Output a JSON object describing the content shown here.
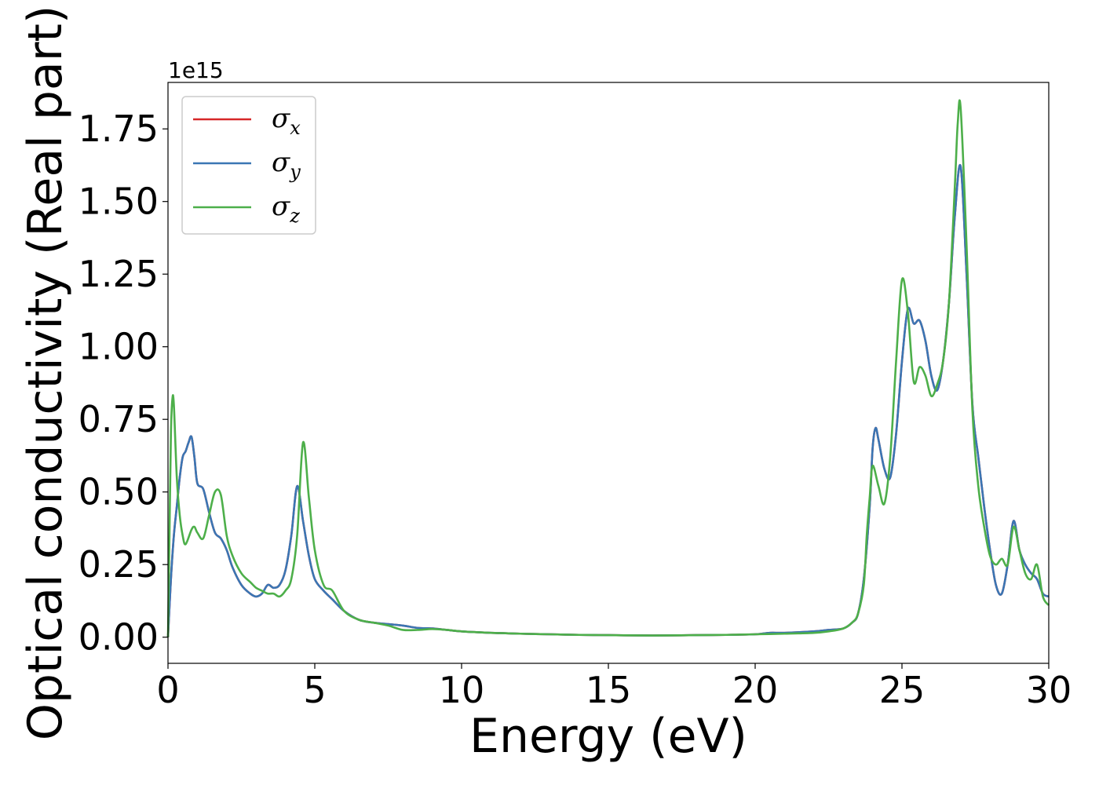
{
  "chart_data": {
    "type": "line",
    "title": "",
    "xlabel": "Energy (eV)",
    "ylabel": "Optical conductivity (Real part)",
    "y_offset_label": "1e15",
    "xlim": [
      0,
      30
    ],
    "ylim": [
      -0.09,
      1.91
    ],
    "x_ticks": [
      0,
      5,
      10,
      15,
      20,
      25,
      30
    ],
    "x_tick_labels": [
      "0",
      "5",
      "10",
      "15",
      "20",
      "25",
      "30"
    ],
    "y_ticks": [
      0.0,
      0.25,
      0.5,
      0.75,
      1.0,
      1.25,
      1.5,
      1.75
    ],
    "y_tick_labels": [
      "0.00",
      "0.25",
      "0.50",
      "0.75",
      "1.00",
      "1.25",
      "1.50",
      "1.75"
    ],
    "grid": false,
    "legend_position": "top-left",
    "series": [
      {
        "name": "σx",
        "symbol": "σ",
        "subscript": "x",
        "color": "#d62728",
        "x": [
          0,
          0.1,
          0.2,
          0.3,
          0.4,
          0.5,
          0.6,
          0.7,
          0.8,
          0.9,
          1.0,
          1.2,
          1.4,
          1.6,
          1.8,
          2.0,
          2.2,
          2.5,
          2.8,
          3.0,
          3.2,
          3.4,
          3.6,
          3.8,
          4.0,
          4.2,
          4.4,
          4.6,
          4.8,
          5.0,
          5.3,
          5.6,
          6.0,
          6.5,
          7.0,
          7.5,
          8.0,
          8.5,
          9.0,
          9.5,
          10,
          11,
          12,
          13,
          14,
          15,
          16,
          17,
          18,
          19,
          20,
          20.5,
          21,
          22,
          22.5,
          23,
          23.3,
          23.5,
          23.7,
          23.9,
          24.0,
          24.1,
          24.2,
          24.4,
          24.6,
          24.8,
          25.0,
          25.2,
          25.4,
          25.6,
          25.8,
          26.0,
          26.2,
          26.4,
          26.6,
          26.8,
          27.0,
          27.2,
          27.4,
          27.6,
          27.8,
          28.0,
          28.2,
          28.4,
          28.6,
          28.8,
          29.0,
          29.2,
          29.4,
          29.6,
          29.8,
          30
        ],
        "y": [
          0.0,
          0.2,
          0.35,
          0.45,
          0.55,
          0.62,
          0.64,
          0.67,
          0.69,
          0.62,
          0.53,
          0.51,
          0.43,
          0.36,
          0.34,
          0.3,
          0.24,
          0.18,
          0.15,
          0.14,
          0.15,
          0.18,
          0.17,
          0.18,
          0.23,
          0.35,
          0.52,
          0.4,
          0.28,
          0.2,
          0.16,
          0.13,
          0.09,
          0.06,
          0.05,
          0.045,
          0.04,
          0.032,
          0.03,
          0.025,
          0.02,
          0.015,
          0.012,
          0.01,
          0.008,
          0.007,
          0.006,
          0.006,
          0.007,
          0.008,
          0.01,
          0.015,
          0.015,
          0.02,
          0.025,
          0.03,
          0.05,
          0.08,
          0.2,
          0.45,
          0.65,
          0.72,
          0.68,
          0.58,
          0.55,
          0.7,
          0.95,
          1.13,
          1.08,
          1.09,
          1.02,
          0.9,
          0.85,
          0.95,
          1.15,
          1.45,
          1.62,
          1.25,
          0.8,
          0.62,
          0.45,
          0.3,
          0.18,
          0.15,
          0.25,
          0.4,
          0.3,
          0.25,
          0.22,
          0.2,
          0.15,
          0.14
        ]
      },
      {
        "name": "σy",
        "symbol": "σ",
        "subscript": "y",
        "color": "#3a76b4",
        "x": [
          0,
          0.1,
          0.2,
          0.3,
          0.4,
          0.5,
          0.6,
          0.7,
          0.8,
          0.9,
          1.0,
          1.2,
          1.4,
          1.6,
          1.8,
          2.0,
          2.2,
          2.5,
          2.8,
          3.0,
          3.2,
          3.4,
          3.6,
          3.8,
          4.0,
          4.2,
          4.4,
          4.6,
          4.8,
          5.0,
          5.3,
          5.6,
          6.0,
          6.5,
          7.0,
          7.5,
          8.0,
          8.5,
          9.0,
          9.5,
          10,
          11,
          12,
          13,
          14,
          15,
          16,
          17,
          18,
          19,
          20,
          20.5,
          21,
          22,
          22.5,
          23,
          23.3,
          23.5,
          23.7,
          23.9,
          24.0,
          24.1,
          24.2,
          24.4,
          24.6,
          24.8,
          25.0,
          25.2,
          25.4,
          25.6,
          25.8,
          26.0,
          26.2,
          26.4,
          26.6,
          26.8,
          27.0,
          27.2,
          27.4,
          27.6,
          27.8,
          28.0,
          28.2,
          28.4,
          28.6,
          28.8,
          29.0,
          29.2,
          29.4,
          29.6,
          29.8,
          30
        ],
        "y": [
          0.0,
          0.2,
          0.35,
          0.45,
          0.55,
          0.62,
          0.64,
          0.67,
          0.69,
          0.62,
          0.53,
          0.51,
          0.43,
          0.36,
          0.34,
          0.3,
          0.24,
          0.18,
          0.15,
          0.14,
          0.15,
          0.18,
          0.17,
          0.18,
          0.23,
          0.35,
          0.52,
          0.4,
          0.28,
          0.2,
          0.16,
          0.13,
          0.09,
          0.06,
          0.05,
          0.045,
          0.04,
          0.032,
          0.03,
          0.025,
          0.02,
          0.015,
          0.012,
          0.01,
          0.008,
          0.007,
          0.006,
          0.006,
          0.007,
          0.008,
          0.01,
          0.015,
          0.015,
          0.02,
          0.025,
          0.03,
          0.05,
          0.08,
          0.2,
          0.45,
          0.65,
          0.72,
          0.68,
          0.58,
          0.55,
          0.7,
          0.95,
          1.13,
          1.08,
          1.09,
          1.02,
          0.9,
          0.85,
          0.95,
          1.15,
          1.45,
          1.62,
          1.25,
          0.8,
          0.62,
          0.45,
          0.3,
          0.18,
          0.15,
          0.25,
          0.4,
          0.3,
          0.25,
          0.22,
          0.2,
          0.15,
          0.14
        ]
      },
      {
        "name": "σz",
        "symbol": "σ",
        "subscript": "z",
        "color": "#4daf4a",
        "x": [
          0,
          0.05,
          0.1,
          0.15,
          0.2,
          0.3,
          0.4,
          0.5,
          0.6,
          0.8,
          0.9,
          1.0,
          1.2,
          1.4,
          1.6,
          1.8,
          2.0,
          2.2,
          2.5,
          2.8,
          3.0,
          3.2,
          3.4,
          3.6,
          3.8,
          4.0,
          4.2,
          4.4,
          4.6,
          4.8,
          5.0,
          5.3,
          5.6,
          6.0,
          6.5,
          7.0,
          7.5,
          8.0,
          8.5,
          9.0,
          9.5,
          10,
          11,
          12,
          13,
          14,
          15,
          16,
          17,
          18,
          19,
          20,
          21,
          22,
          22.5,
          23,
          23.3,
          23.5,
          23.7,
          23.8,
          23.9,
          24.0,
          24.2,
          24.4,
          24.6,
          24.8,
          25.0,
          25.2,
          25.4,
          25.6,
          25.8,
          26.0,
          26.2,
          26.4,
          26.6,
          26.8,
          26.9,
          27.0,
          27.2,
          27.4,
          27.6,
          27.8,
          28.0,
          28.2,
          28.4,
          28.6,
          28.8,
          29.0,
          29.2,
          29.4,
          29.6,
          29.8,
          30
        ],
        "y": [
          0.0,
          0.35,
          0.7,
          0.82,
          0.8,
          0.55,
          0.42,
          0.35,
          0.32,
          0.37,
          0.38,
          0.36,
          0.34,
          0.42,
          0.5,
          0.49,
          0.35,
          0.28,
          0.22,
          0.19,
          0.17,
          0.16,
          0.15,
          0.15,
          0.14,
          0.16,
          0.2,
          0.35,
          0.67,
          0.48,
          0.3,
          0.18,
          0.16,
          0.09,
          0.06,
          0.05,
          0.04,
          0.025,
          0.025,
          0.028,
          0.025,
          0.02,
          0.015,
          0.012,
          0.01,
          0.008,
          0.007,
          0.006,
          0.006,
          0.007,
          0.008,
          0.01,
          0.012,
          0.015,
          0.02,
          0.03,
          0.05,
          0.08,
          0.18,
          0.35,
          0.48,
          0.59,
          0.52,
          0.46,
          0.62,
          0.95,
          1.23,
          1.12,
          0.88,
          0.93,
          0.9,
          0.83,
          0.87,
          0.95,
          1.15,
          1.55,
          1.77,
          1.82,
          1.35,
          0.78,
          0.52,
          0.38,
          0.28,
          0.25,
          0.27,
          0.25,
          0.38,
          0.3,
          0.22,
          0.2,
          0.25,
          0.14,
          0.11
        ]
      }
    ]
  }
}
